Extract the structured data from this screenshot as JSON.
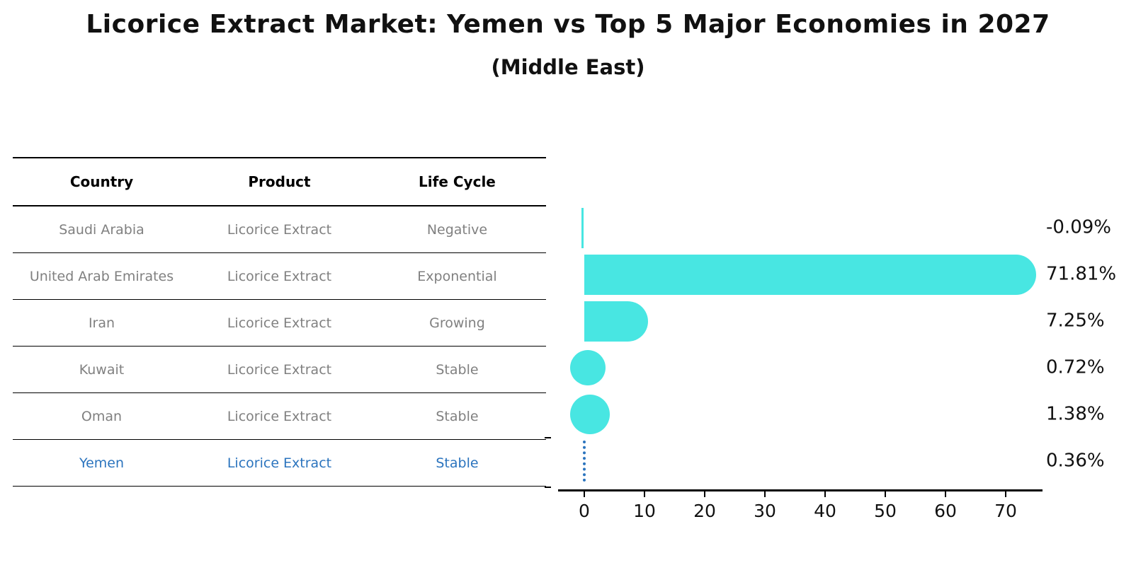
{
  "title": "Licorice Extract Market: Yemen vs Top 5 Major Economies in 2027",
  "subtitle": "(Middle East)",
  "table": {
    "columns": [
      "Country",
      "Product",
      "Life Cycle"
    ],
    "rows": [
      {
        "country": "Saudi Arabia",
        "product": "Licorice Extract",
        "life_cycle": "Negative",
        "highlight": false
      },
      {
        "country": "United Arab Emirates",
        "product": "Licorice Extract",
        "life_cycle": "Exponential",
        "highlight": false
      },
      {
        "country": "Iran",
        "product": "Licorice Extract",
        "life_cycle": "Growing",
        "highlight": false
      },
      {
        "country": "Kuwait",
        "product": "Licorice Extract",
        "life_cycle": "Stable",
        "highlight": false
      },
      {
        "country": "Oman",
        "product": "Licorice Extract",
        "life_cycle": "Stable",
        "highlight": false
      },
      {
        "country": "Yemen",
        "product": "Licorice Extract",
        "life_cycle": "Stable",
        "highlight": true
      }
    ]
  },
  "chart_data": {
    "type": "bar",
    "orientation": "horizontal",
    "title": "Licorice Extract Market: Yemen vs Top 5 Major Economies in 2027",
    "subtitle": "(Middle East)",
    "categories": [
      "Saudi Arabia",
      "United Arab Emirates",
      "Iran",
      "Kuwait",
      "Oman",
      "Yemen"
    ],
    "values": [
      -0.09,
      71.81,
      7.25,
      0.72,
      1.38,
      0.36
    ],
    "value_labels": [
      "-0.09%",
      "71.81%",
      "7.25%",
      "0.72%",
      "1.38%",
      "0.36%"
    ],
    "xlabel": "",
    "ylabel": "",
    "xticks": [
      0,
      10,
      20,
      30,
      40,
      50,
      60,
      70
    ],
    "xlim": [
      -4.4,
      76.1
    ],
    "grid": false,
    "legend": false,
    "highlight_category": "Yemen",
    "bar_color": "#48E6E2",
    "highlight_color": "#2B74BE"
  },
  "colors": {
    "row_text": "#808080",
    "header_text": "#000000",
    "axis": "#000000"
  }
}
